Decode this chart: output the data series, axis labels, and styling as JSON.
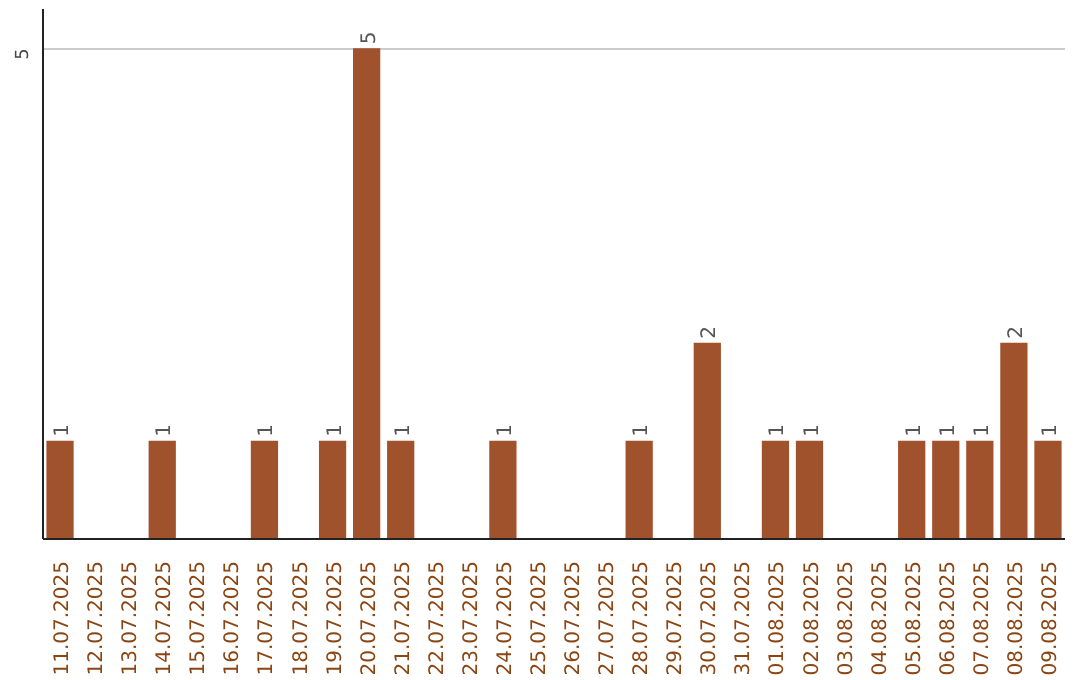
{
  "chart_data": {
    "type": "bar",
    "categories": [
      "11.07.2025",
      "12.07.2025",
      "13.07.2025",
      "14.07.2025",
      "15.07.2025",
      "16.07.2025",
      "17.07.2025",
      "18.07.2025",
      "19.07.2025",
      "20.07.2025",
      "21.07.2025",
      "22.07.2025",
      "23.07.2025",
      "24.07.2025",
      "25.07.2025",
      "26.07.2025",
      "27.07.2025",
      "28.07.2025",
      "29.07.2025",
      "30.07.2025",
      "31.07.2025",
      "01.08.2025",
      "02.08.2025",
      "03.08.2025",
      "04.08.2025",
      "05.08.2025",
      "06.08.2025",
      "07.08.2025",
      "08.08.2025",
      "09.08.2025"
    ],
    "values": [
      1,
      0,
      0,
      1,
      0,
      0,
      1,
      0,
      1,
      5,
      1,
      0,
      0,
      1,
      0,
      0,
      0,
      1,
      0,
      2,
      0,
      1,
      1,
      0,
      0,
      1,
      1,
      1,
      2,
      1
    ],
    "value_labels": [
      "1",
      null,
      null,
      "1",
      null,
      null,
      "1",
      null,
      "1",
      "5",
      "1",
      null,
      null,
      "1",
      null,
      null,
      null,
      "1",
      null,
      "2",
      null,
      "1",
      "1",
      null,
      null,
      "1",
      "1",
      "1",
      "2",
      "1"
    ],
    "color": "#a0522d",
    "ylim": [
      0,
      5.4
    ],
    "yticks": [
      {
        "value": 0,
        "label": null
      },
      5
    ],
    "grid": "y"
  }
}
